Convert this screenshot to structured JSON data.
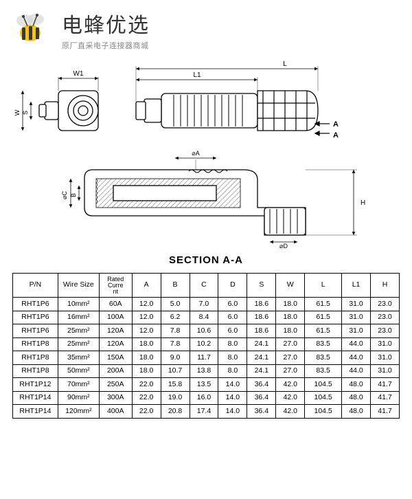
{
  "header": {
    "brand": "电蜂优选",
    "tagline": "原厂直采电子连接器商城"
  },
  "drawing": {
    "section_label": "SECTION  A-A",
    "dim_labels": {
      "W1": "W1",
      "L": "L",
      "L1": "L1",
      "A_left": "A",
      "A_right": "A",
      "phiA": "⌀A",
      "phiC": "⌀C",
      "B": "B",
      "H": "H",
      "phiD": "⌀D",
      "S": "S",
      "W": "W"
    },
    "stroke": "#000000",
    "fill": "#ffffff",
    "dim_line_width": 0.8,
    "outline_width": 1.3,
    "hatch_width": 0.5
  },
  "table": {
    "columns": [
      "P/N",
      "Wire Size",
      "Rated Current",
      "A",
      "B",
      "C",
      "D",
      "S",
      "W",
      "L",
      "L1",
      "H"
    ],
    "col_widths_pct": [
      11,
      10,
      8,
      7,
      7,
      7,
      7,
      7,
      7,
      9,
      7,
      7
    ],
    "rows": [
      [
        "RHT1P6",
        "10mm²",
        "60A",
        "12.0",
        "5.0",
        "7.0",
        "6.0",
        "18.6",
        "18.0",
        "61.5",
        "31.0",
        "23.0"
      ],
      [
        "RHT1P6",
        "16mm²",
        "100A",
        "12.0",
        "6.2",
        "8.4",
        "6.0",
        "18.6",
        "18.0",
        "61.5",
        "31.0",
        "23.0"
      ],
      [
        "RHT1P6",
        "25mm²",
        "120A",
        "12.0",
        "7.8",
        "10.6",
        "6.0",
        "18.6",
        "18.0",
        "61.5",
        "31.0",
        "23.0"
      ],
      [
        "RHT1P8",
        "25mm²",
        "120A",
        "18.0",
        "7.8",
        "10.2",
        "8.0",
        "24.1",
        "27.0",
        "83.5",
        "44.0",
        "31.0"
      ],
      [
        "RHT1P8",
        "35mm²",
        "150A",
        "18.0",
        "9.0",
        "11.7",
        "8.0",
        "24.1",
        "27.0",
        "83.5",
        "44.0",
        "31.0"
      ],
      [
        "RHT1P8",
        "50mm²",
        "200A",
        "18.0",
        "10.7",
        "13.8",
        "8.0",
        "24.1",
        "27.0",
        "83.5",
        "44.0",
        "31.0"
      ],
      [
        "RHT1P12",
        "70mm²",
        "250A",
        "22.0",
        "15.8",
        "13.5",
        "14.0",
        "36.4",
        "42.0",
        "104.5",
        "48.0",
        "41.7"
      ],
      [
        "RHT1P14",
        "90mm²",
        "300A",
        "22.0",
        "19.0",
        "16.0",
        "14.0",
        "36.4",
        "42.0",
        "104.5",
        "48.0",
        "41.7"
      ],
      [
        "RHT1P14",
        "120mm²",
        "400A",
        "22.0",
        "20.8",
        "17.4",
        "14.0",
        "36.4",
        "42.0",
        "104.5",
        "48.0",
        "41.7"
      ]
    ]
  }
}
